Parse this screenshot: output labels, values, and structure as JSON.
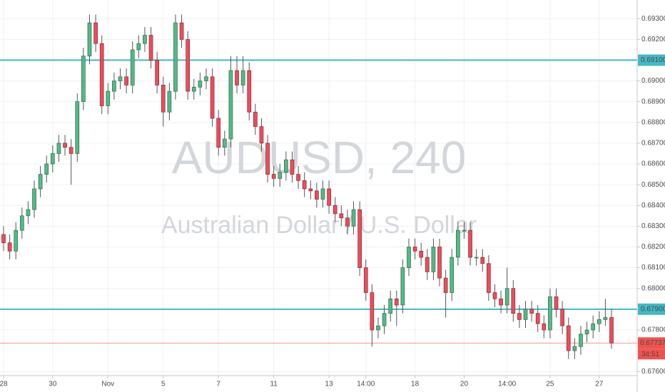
{
  "chart_data": {
    "type": "candlestick",
    "watermark": "AUDUSD, 240",
    "subtitle": "Australian Dollar / U.S. Dollar",
    "up_color": "#53b987",
    "down_color": "#eb4d5c",
    "line_color": "#45b8c3",
    "price_color": "#ef5350",
    "grid": true,
    "ylim": [
      0.6758,
      0.6939
    ],
    "yticks": [
      {
        "value": 0.693,
        "label": "0.69300"
      },
      {
        "value": 0.692,
        "label": "0.69200"
      },
      {
        "value": 0.69,
        "label": "0.69000"
      },
      {
        "value": 0.689,
        "label": "0.68900"
      },
      {
        "value": 0.688,
        "label": "0.68800"
      },
      {
        "value": 0.687,
        "label": "0.68700"
      },
      {
        "value": 0.686,
        "label": "0.68600"
      },
      {
        "value": 0.685,
        "label": "0.68500"
      },
      {
        "value": 0.684,
        "label": "0.68400"
      },
      {
        "value": 0.683,
        "label": "0.68300"
      },
      {
        "value": 0.682,
        "label": "0.68200"
      },
      {
        "value": 0.681,
        "label": "0.68100"
      },
      {
        "value": 0.68,
        "label": "0.68000"
      },
      {
        "value": 0.678,
        "label": "0.67800"
      },
      {
        "value": 0.676,
        "label": "0.67600"
      }
    ],
    "hlines": [
      {
        "value": 0.691,
        "label": "0.69100"
      },
      {
        "value": 0.679,
        "label": "0.67900"
      }
    ],
    "countdown": "34:51",
    "categories": [
      "28",
      null,
      null,
      null,
      null,
      null,
      null,
      null,
      "30",
      null,
      null,
      null,
      null,
      null,
      null,
      null,
      null,
      "Nov",
      null,
      null,
      null,
      null,
      null,
      null,
      null,
      null,
      "5",
      null,
      null,
      null,
      null,
      null,
      null,
      null,
      null,
      "7",
      null,
      null,
      null,
      null,
      null,
      null,
      null,
      null,
      "11",
      null,
      null,
      null,
      null,
      null,
      null,
      null,
      null,
      "13",
      null,
      null,
      null,
      null,
      null,
      "14:00",
      null,
      null,
      null,
      null,
      null,
      null,
      null,
      "18",
      null,
      null,
      null,
      null,
      null,
      null,
      null,
      "20",
      null,
      null,
      null,
      null,
      null,
      null,
      "14:00",
      null,
      null,
      null,
      null,
      null,
      null,
      "25",
      null,
      null,
      null,
      null,
      null,
      null,
      null,
      "27",
      null,
      null
    ],
    "series": [
      {
        "open": [
          0.6826,
          0.6822,
          0.6818,
          0.6828,
          0.6835,
          0.6838,
          0.6848,
          0.6855,
          0.686,
          0.6865,
          0.687,
          0.6868,
          0.6865,
          0.689,
          0.6912,
          0.6928,
          0.6918,
          0.6888,
          0.6895,
          0.69,
          0.6902,
          0.6898,
          0.6915,
          0.6918,
          0.6922,
          0.691,
          0.6898,
          0.6885,
          0.6895,
          0.6928,
          0.692,
          0.6895,
          0.6897,
          0.69,
          0.6902,
          0.6882,
          0.6868,
          0.6872,
          0.6905,
          0.6898,
          0.6905,
          0.6885,
          0.6878,
          0.687,
          0.6855,
          0.6853,
          0.6856,
          0.6862,
          0.6855,
          0.6852,
          0.6848,
          0.6847,
          0.6843,
          0.6848,
          0.684,
          0.6836,
          0.6834,
          0.683,
          0.6838,
          0.681,
          0.6798,
          0.678,
          0.6782,
          0.6788,
          0.6795,
          0.6792,
          0.681,
          0.682,
          0.6818,
          0.6815,
          0.6808,
          0.682,
          0.6805,
          0.6798,
          0.6815,
          0.6828,
          0.6828,
          0.6815,
          0.6815,
          0.6812,
          0.6798,
          0.6795,
          0.6792,
          0.68,
          0.6788,
          0.6785,
          0.679,
          0.6788,
          0.6783,
          0.678,
          0.6796,
          0.679,
          0.6782,
          0.677,
          0.6772,
          0.6778,
          0.678,
          0.6783,
          0.6785,
          0.6786
        ],
        "high": [
          0.683,
          0.6826,
          0.6832,
          0.6839,
          0.6842,
          0.6852,
          0.6859,
          0.6864,
          0.6869,
          0.6874,
          0.6874,
          0.6872,
          0.6894,
          0.6916,
          0.6932,
          0.6932,
          0.6922,
          0.6899,
          0.6904,
          0.6906,
          0.6906,
          0.6919,
          0.6922,
          0.6926,
          0.6926,
          0.6914,
          0.6902,
          0.6899,
          0.6932,
          0.6932,
          0.6924,
          0.6901,
          0.6904,
          0.6906,
          0.6906,
          0.6886,
          0.6876,
          0.6912,
          0.6912,
          0.6912,
          0.6909,
          0.6889,
          0.6882,
          0.6874,
          0.6859,
          0.686,
          0.6866,
          0.6866,
          0.6859,
          0.6856,
          0.6852,
          0.6851,
          0.6852,
          0.6852,
          0.6844,
          0.684,
          0.6838,
          0.6842,
          0.6842,
          0.6814,
          0.6802,
          0.6786,
          0.6792,
          0.6799,
          0.6799,
          0.6814,
          0.6824,
          0.6824,
          0.6822,
          0.6819,
          0.6824,
          0.6824,
          0.6809,
          0.6819,
          0.6832,
          0.6832,
          0.6832,
          0.6819,
          0.6819,
          0.6816,
          0.6802,
          0.6799,
          0.681,
          0.6804,
          0.6792,
          0.6794,
          0.6794,
          0.6792,
          0.6787,
          0.68,
          0.68,
          0.6794,
          0.6786,
          0.6776,
          0.6782,
          0.6784,
          0.6787,
          0.6789,
          0.6795,
          0.679
        ],
        "low": [
          0.6818,
          0.6814,
          0.6814,
          0.6824,
          0.6831,
          0.6834,
          0.6844,
          0.6851,
          0.6856,
          0.6861,
          0.6864,
          0.685,
          0.6861,
          0.6886,
          0.6908,
          0.6914,
          0.6884,
          0.6884,
          0.6891,
          0.6896,
          0.6894,
          0.6894,
          0.6911,
          0.6914,
          0.6906,
          0.6894,
          0.6878,
          0.6881,
          0.6891,
          0.6916,
          0.6891,
          0.6891,
          0.6893,
          0.6896,
          0.6878,
          0.6864,
          0.6864,
          0.6868,
          0.6894,
          0.6894,
          0.6881,
          0.6874,
          0.6866,
          0.6851,
          0.6849,
          0.6849,
          0.6852,
          0.6851,
          0.6848,
          0.6844,
          0.6843,
          0.6839,
          0.6839,
          0.6836,
          0.6832,
          0.683,
          0.6826,
          0.6826,
          0.6806,
          0.6794,
          0.6772,
          0.6776,
          0.6778,
          0.6784,
          0.6782,
          0.6788,
          0.6806,
          0.6814,
          0.6811,
          0.6804,
          0.6804,
          0.6801,
          0.6786,
          0.6794,
          0.6811,
          0.6824,
          0.6811,
          0.6811,
          0.6808,
          0.6794,
          0.6791,
          0.6788,
          0.6788,
          0.6784,
          0.6781,
          0.6781,
          0.6784,
          0.6779,
          0.6776,
          0.6776,
          0.6786,
          0.6778,
          0.6766,
          0.6766,
          0.6768,
          0.6774,
          0.6776,
          0.6779,
          0.6782,
          0.6771
        ],
        "close": [
          0.6822,
          0.6818,
          0.6828,
          0.6835,
          0.6838,
          0.6848,
          0.6855,
          0.686,
          0.6865,
          0.687,
          0.6868,
          0.6865,
          0.689,
          0.6912,
          0.6928,
          0.6918,
          0.6888,
          0.6895,
          0.69,
          0.6902,
          0.6898,
          0.6915,
          0.6918,
          0.6922,
          0.691,
          0.6898,
          0.6885,
          0.6895,
          0.6928,
          0.692,
          0.6895,
          0.6897,
          0.69,
          0.6902,
          0.6882,
          0.6868,
          0.6872,
          0.6905,
          0.6898,
          0.6905,
          0.6885,
          0.6878,
          0.687,
          0.6855,
          0.6853,
          0.6856,
          0.6862,
          0.6855,
          0.6852,
          0.6848,
          0.6847,
          0.6843,
          0.6848,
          0.684,
          0.6836,
          0.6834,
          0.683,
          0.6838,
          0.681,
          0.6798,
          0.678,
          0.6782,
          0.6788,
          0.6795,
          0.6792,
          0.681,
          0.682,
          0.6818,
          0.6815,
          0.6808,
          0.682,
          0.6805,
          0.6798,
          0.6815,
          0.6828,
          0.6828,
          0.6815,
          0.6815,
          0.6812,
          0.6798,
          0.6795,
          0.6792,
          0.68,
          0.6788,
          0.6785,
          0.679,
          0.6788,
          0.6783,
          0.678,
          0.6796,
          0.679,
          0.6782,
          0.677,
          0.6772,
          0.6778,
          0.678,
          0.6783,
          0.6785,
          0.6786,
          0.67737
        ]
      }
    ]
  }
}
